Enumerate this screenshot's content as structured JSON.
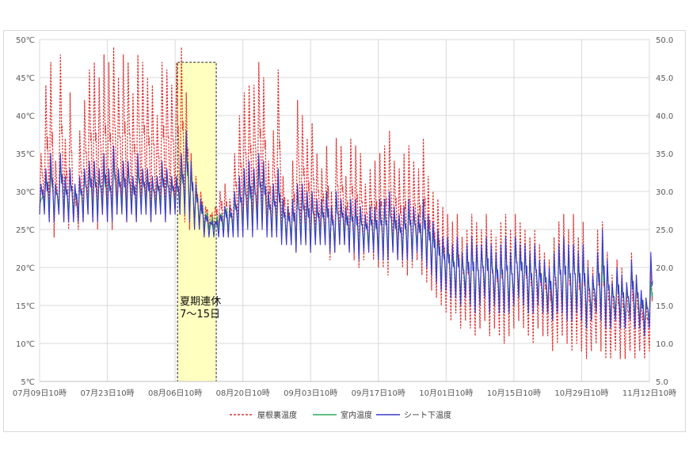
{
  "chart_data": {
    "type": "line",
    "title": "",
    "y_left_ticks": [
      "5℃",
      "10℃",
      "15℃",
      "20℃",
      "25℃",
      "30℃",
      "35℃",
      "40℃",
      "45℃",
      "50℃"
    ],
    "y_right_ticks": [
      "5.0",
      "10.0",
      "15.0",
      "20.0",
      "25.0",
      "30.0",
      "35.0",
      "40.0",
      "45.0",
      "50.0"
    ],
    "ylim": [
      5,
      50
    ],
    "x_ticks": [
      "07月09日10時",
      "07月23日10時",
      "08月06日10時",
      "08月20日10時",
      "09月03日10時",
      "09月17日10時",
      "10月01日10時",
      "10月15日10時",
      "10月29日10時",
      "11月12日10時"
    ],
    "x_range_days": [
      0,
      126
    ],
    "grid": true,
    "legend_position": "bottom",
    "annotation": {
      "lines": [
        "夏期連休",
        "7～15日"
      ],
      "x_start_day": 28.5,
      "x_end_day": 36.5,
      "y_top": 47
    },
    "series": [
      {
        "name": "屋根裏温度",
        "color": "#e03030",
        "style": "dashed",
        "days": [
          0,
          1,
          2,
          3,
          4,
          5,
          6,
          7,
          8,
          9,
          10,
          11,
          12,
          13,
          14,
          15,
          16,
          17,
          18,
          19,
          20,
          21,
          22,
          23,
          24,
          25,
          26,
          27,
          28,
          29,
          30,
          31,
          32,
          33,
          34,
          35,
          36,
          37,
          38,
          39,
          40,
          41,
          42,
          43,
          44,
          45,
          46,
          47,
          48,
          49,
          50,
          51,
          52,
          53,
          54,
          55,
          56,
          57,
          58,
          59,
          60,
          61,
          62,
          63,
          64,
          65,
          66,
          67,
          68,
          69,
          70,
          71,
          72,
          73,
          74,
          75,
          76,
          77,
          78,
          79,
          80,
          81,
          82,
          83,
          84,
          85,
          86,
          87,
          88,
          89,
          90,
          91,
          92,
          93,
          94,
          95,
          96,
          97,
          98,
          99,
          100,
          101,
          102,
          103,
          104,
          105,
          106,
          107,
          108,
          109,
          110,
          111,
          112,
          113,
          114,
          115,
          116,
          117,
          118,
          119,
          120,
          121,
          122,
          123,
          124,
          125,
          126
        ],
        "max": [
          35,
          44,
          47,
          34,
          48,
          37,
          43,
          30,
          38,
          42,
          46,
          47,
          45,
          48,
          47,
          49,
          45,
          48,
          47,
          43,
          48,
          47,
          45,
          44,
          40,
          47,
          46,
          44,
          47,
          49,
          43,
          35,
          32,
          30,
          28,
          27,
          28,
          30,
          31,
          29,
          35,
          40,
          43,
          44,
          44,
          47,
          45,
          34,
          38,
          46,
          32,
          29,
          34,
          42,
          40,
          37,
          39,
          35,
          33,
          36,
          30,
          37,
          36,
          32,
          37,
          36,
          35,
          31,
          33,
          34,
          35,
          36,
          38,
          34,
          33,
          35,
          36,
          34,
          33,
          37,
          32,
          30,
          29,
          28,
          27,
          26,
          27,
          24,
          25,
          27,
          26,
          25,
          27,
          25,
          24,
          26,
          27,
          25,
          27,
          26,
          25,
          24,
          25,
          23,
          22,
          21,
          24,
          26,
          27,
          25,
          27,
          24,
          26,
          21,
          20,
          25,
          26,
          22,
          19,
          21,
          20,
          18,
          22,
          19,
          17,
          16,
          21
        ],
        "min": [
          27,
          28,
          26,
          24,
          27,
          26,
          25,
          26,
          25,
          26,
          27,
          26,
          25,
          27,
          26,
          25,
          27,
          28,
          26,
          27,
          26,
          28,
          27,
          26,
          27,
          28,
          26,
          27,
          28,
          27,
          26,
          25,
          25,
          25,
          25,
          25,
          25,
          25,
          24,
          24,
          25,
          25,
          25,
          26,
          25,
          27,
          26,
          25,
          24,
          25,
          24,
          23,
          23,
          22,
          24,
          23,
          22,
          23,
          24,
          23,
          21,
          22,
          23,
          23,
          22,
          21,
          20,
          21,
          22,
          21,
          20,
          20,
          19,
          22,
          21,
          20,
          19,
          20,
          21,
          19,
          18,
          17,
          16,
          15,
          14,
          13,
          14,
          12,
          13,
          12,
          11,
          12,
          13,
          11,
          12,
          11,
          10,
          11,
          12,
          13,
          12,
          11,
          10,
          12,
          11,
          11,
          9,
          10,
          11,
          10,
          9,
          10,
          9,
          8,
          9,
          10,
          9,
          8,
          8,
          9,
          8,
          8,
          9,
          8,
          9,
          8,
          9
        ]
      },
      {
        "name": "室内温度",
        "color": "#2aaa5a",
        "style": "solid",
        "days": [
          0,
          1,
          2,
          3,
          4,
          5,
          6,
          7,
          8,
          9,
          10,
          11,
          12,
          13,
          14,
          15,
          16,
          17,
          18,
          19,
          20,
          21,
          22,
          23,
          24,
          25,
          26,
          27,
          28,
          29,
          30,
          31,
          32,
          33,
          34,
          35,
          36,
          37,
          38,
          39,
          40,
          41,
          42,
          43,
          44,
          45,
          46,
          47,
          48,
          49,
          50,
          51,
          52,
          53,
          54,
          55,
          56,
          57,
          58,
          59,
          60,
          61,
          62,
          63,
          64,
          65,
          66,
          67,
          68,
          69,
          70,
          71,
          72,
          73,
          74,
          75,
          76,
          77,
          78,
          79,
          80,
          81,
          82,
          83,
          84,
          85,
          86,
          87,
          88,
          89,
          90,
          91,
          92,
          93,
          94,
          95,
          96,
          97,
          98,
          99,
          100,
          101,
          102,
          103,
          104,
          105,
          106,
          107,
          108,
          109,
          110,
          111,
          112,
          113,
          114,
          115,
          116,
          117,
          118,
          119,
          120,
          121,
          122,
          123,
          124,
          125,
          126
        ],
        "max": [
          29,
          32,
          33,
          30,
          34,
          31,
          32,
          30,
          31,
          32,
          33,
          33,
          32,
          33,
          32,
          34,
          32,
          33,
          33,
          31,
          33,
          32,
          32,
          31,
          31,
          33,
          32,
          31,
          31,
          33,
          36,
          33,
          30,
          28,
          27,
          26,
          26,
          27,
          28,
          27,
          29,
          31,
          32,
          32,
          32,
          34,
          33,
          29,
          30,
          32,
          28,
          27,
          28,
          30,
          30,
          29,
          29,
          28,
          28,
          29,
          27,
          29,
          28,
          27,
          28,
          28,
          27,
          26,
          27,
          27,
          28,
          28,
          29,
          27,
          26,
          27,
          28,
          27,
          26,
          28,
          26,
          25,
          24,
          23,
          23,
          22,
          23,
          21,
          22,
          23,
          22,
          22,
          23,
          22,
          21,
          22,
          23,
          21,
          23,
          22,
          22,
          21,
          22,
          20,
          20,
          19,
          21,
          22,
          23,
          22,
          22,
          21,
          22,
          19,
          18,
          21,
          22,
          20,
          17,
          19,
          18,
          17,
          20,
          18,
          16,
          15,
          18
        ],
        "min": [
          28,
          28,
          27,
          27,
          28,
          27,
          27,
          27,
          27,
          27,
          28,
          27,
          27,
          28,
          27,
          27,
          28,
          28,
          27,
          28,
          27,
          28,
          28,
          27,
          28,
          28,
          27,
          28,
          28,
          28,
          28,
          27,
          26,
          26,
          25,
          25,
          25,
          25,
          25,
          25,
          25,
          25,
          25,
          26,
          25,
          26,
          26,
          25,
          25,
          25,
          24,
          24,
          24,
          23,
          24,
          24,
          23,
          24,
          24,
          24,
          23,
          23,
          24,
          24,
          23,
          23,
          22,
          23,
          23,
          23,
          22,
          22,
          22,
          23,
          22,
          22,
          22,
          22,
          23,
          22,
          21,
          20,
          19,
          18,
          18,
          17,
          17,
          16,
          17,
          16,
          15,
          16,
          17,
          15,
          16,
          15,
          15,
          15,
          16,
          17,
          16,
          15,
          15,
          16,
          15,
          15,
          14,
          15,
          15,
          14,
          14,
          15,
          14,
          13,
          14,
          15,
          14,
          13,
          13,
          14,
          13,
          13,
          14,
          13,
          13,
          12,
          13
        ]
      },
      {
        "name": "シート下温度",
        "color": "#3a3acc",
        "style": "solid",
        "days": [
          0,
          1,
          2,
          3,
          4,
          5,
          6,
          7,
          8,
          9,
          10,
          11,
          12,
          13,
          14,
          15,
          16,
          17,
          18,
          19,
          20,
          21,
          22,
          23,
          24,
          25,
          26,
          27,
          28,
          29,
          30,
          31,
          32,
          33,
          34,
          35,
          36,
          37,
          38,
          39,
          40,
          41,
          42,
          43,
          44,
          45,
          46,
          47,
          48,
          49,
          50,
          51,
          52,
          53,
          54,
          55,
          56,
          57,
          58,
          59,
          60,
          61,
          62,
          63,
          64,
          65,
          66,
          67,
          68,
          69,
          70,
          71,
          72,
          73,
          74,
          75,
          76,
          77,
          78,
          79,
          80,
          81,
          82,
          83,
          84,
          85,
          86,
          87,
          88,
          89,
          90,
          91,
          92,
          93,
          94,
          95,
          96,
          97,
          98,
          99,
          100,
          101,
          102,
          103,
          104,
          105,
          106,
          107,
          108,
          109,
          110,
          111,
          112,
          113,
          114,
          115,
          116,
          117,
          118,
          119,
          120,
          121,
          122,
          123,
          124,
          125,
          126
        ],
        "max": [
          31,
          33,
          35,
          31,
          35,
          32,
          33,
          31,
          32,
          33,
          34,
          34,
          33,
          35,
          33,
          36,
          33,
          34,
          34,
          32,
          35,
          33,
          33,
          32,
          32,
          34,
          33,
          32,
          32,
          35,
          38,
          34,
          31,
          29,
          27,
          26,
          26,
          27,
          28,
          28,
          30,
          32,
          33,
          34,
          33,
          35,
          34,
          30,
          31,
          33,
          29,
          28,
          29,
          31,
          31,
          30,
          30,
          29,
          29,
          30,
          28,
          30,
          29,
          28,
          29,
          29,
          28,
          27,
          28,
          28,
          29,
          29,
          30,
          28,
          27,
          28,
          29,
          28,
          27,
          29,
          27,
          26,
          25,
          24,
          24,
          23,
          24,
          22,
          23,
          24,
          23,
          23,
          24,
          23,
          22,
          23,
          24,
          22,
          24,
          23,
          23,
          22,
          23,
          21,
          21,
          20,
          22,
          23,
          24,
          23,
          23,
          22,
          23,
          20,
          19,
          22,
          25,
          21,
          18,
          20,
          19,
          18,
          21,
          19,
          17,
          16,
          22
        ],
        "min": [
          27,
          27,
          26,
          26,
          27,
          26,
          26,
          26,
          26,
          26,
          27,
          26,
          26,
          27,
          26,
          26,
          27,
          27,
          26,
          27,
          26,
          27,
          27,
          26,
          27,
          27,
          26,
          27,
          27,
          27,
          27,
          26,
          25,
          25,
          24,
          24,
          24,
          24,
          24,
          24,
          24,
          24,
          24,
          25,
          24,
          25,
          25,
          24,
          24,
          24,
          23,
          23,
          23,
          22,
          23,
          23,
          22,
          23,
          23,
          23,
          22,
          22,
          23,
          23,
          22,
          22,
          21,
          22,
          22,
          22,
          21,
          21,
          21,
          22,
          21,
          21,
          21,
          21,
          22,
          21,
          20,
          19,
          18,
          17,
          17,
          16,
          16,
          15,
          16,
          15,
          14,
          15,
          16,
          14,
          15,
          14,
          14,
          14,
          15,
          16,
          15,
          14,
          14,
          15,
          14,
          14,
          13,
          14,
          14,
          13,
          13,
          14,
          13,
          12,
          13,
          14,
          13,
          12,
          12,
          13,
          12,
          12,
          13,
          12,
          12,
          11,
          12
        ]
      }
    ]
  }
}
